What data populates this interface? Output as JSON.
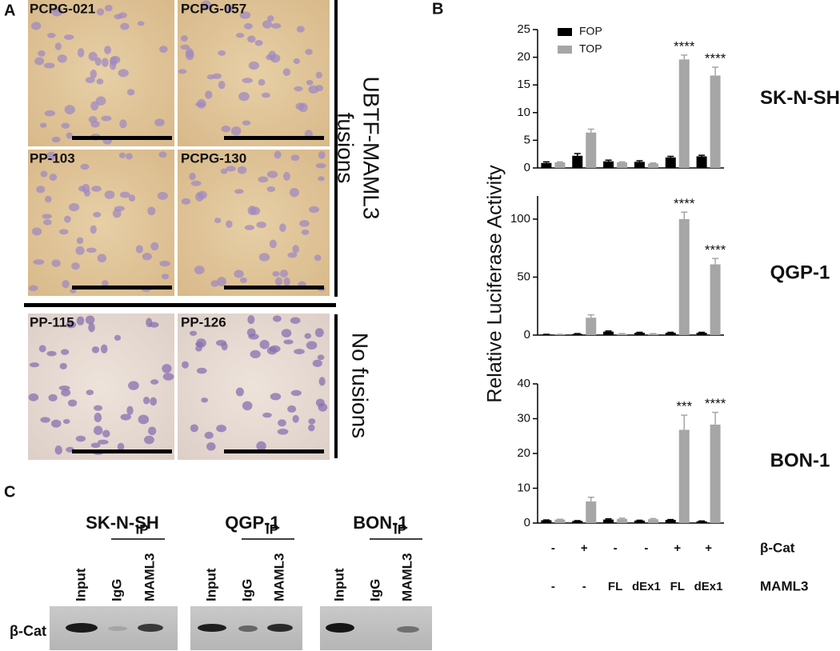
{
  "panel_labels": [
    "A",
    "B",
    "C"
  ],
  "histology": {
    "samples": [
      "PCPG-021",
      "PCPG-057",
      "PP-103",
      "PCPG-130",
      "PP-115",
      "PP-126"
    ],
    "groups": [
      [
        "UBTF-MAML3",
        "fusions"
      ],
      [
        "No fusions"
      ]
    ]
  },
  "y_label": "Relative Luciferase Activity",
  "chart_data": [
    {
      "type": "bar",
      "title": "SK-N-SH",
      "categories": [
        null,
        null,
        null,
        null,
        null,
        null
      ],
      "ylim": [
        0,
        25
      ],
      "yticks": [
        0,
        5,
        10,
        15,
        20,
        25
      ],
      "series": [
        {
          "name": "FOP",
          "color": "#000000",
          "values": [
            0.9,
            2.2,
            1.2,
            1.1,
            1.9,
            2.1
          ],
          "errors": [
            0.2,
            0.4,
            0.2,
            0.2,
            0.2,
            0.2
          ]
        },
        {
          "name": "TOP",
          "color": "#a6a6a6",
          "values": [
            1.0,
            6.4,
            1.0,
            0.8,
            19.6,
            16.7
          ],
          "errors": [
            0.1,
            0.6,
            0.1,
            0.1,
            0.8,
            1.5
          ],
          "significance": [
            null,
            null,
            null,
            null,
            "****",
            "****"
          ]
        }
      ]
    },
    {
      "type": "bar",
      "title": "QGP-1",
      "categories": [
        null,
        null,
        null,
        null,
        null,
        null
      ],
      "ylim": [
        0,
        120
      ],
      "yticks": [
        0,
        50,
        100
      ],
      "series": [
        {
          "color": "#000000",
          "values": [
            0.5,
            1,
            3,
            2,
            2,
            2
          ],
          "errors": [
            0.2,
            0.3,
            0.5,
            0.4,
            0.4,
            0.4
          ]
        },
        {
          "color": "#a6a6a6",
          "values": [
            0.5,
            15,
            1,
            1,
            100,
            61
          ],
          "errors": [
            0.2,
            2.5,
            0.3,
            0.3,
            6,
            5
          ],
          "significance": [
            null,
            null,
            null,
            null,
            "****",
            "****"
          ]
        }
      ]
    },
    {
      "type": "bar",
      "title": "BON-1",
      "categories": [
        null,
        null,
        null,
        null,
        null,
        null
      ],
      "ylim": [
        0,
        40
      ],
      "yticks": [
        0,
        10,
        20,
        30,
        40
      ],
      "series": [
        {
          "color": "#000000",
          "values": [
            0.8,
            0.6,
            1,
            0.7,
            0.9,
            0.5
          ],
          "errors": [
            0.1,
            0.1,
            0.2,
            0.1,
            0.1,
            0.1
          ]
        },
        {
          "color": "#a6a6a6",
          "values": [
            1,
            6.2,
            1.2,
            1.1,
            26.8,
            28.3
          ],
          "errors": [
            0.1,
            1.2,
            0.2,
            0.2,
            4.2,
            3.5
          ],
          "significance": [
            null,
            null,
            null,
            null,
            "***",
            "****"
          ]
        }
      ]
    }
  ],
  "conditions": [
    {
      "label": "β-Cat",
      "values": [
        "-",
        "+",
        "-",
        "-",
        "+",
        "+"
      ]
    },
    {
      "label": "MAML3",
      "values": [
        "-",
        "-",
        "FL",
        "dEx1",
        "FL",
        "dEx1"
      ]
    }
  ],
  "western": {
    "row_label": "β-Cat",
    "blots": [
      {
        "title": "SK-N-SH",
        "ip": "IP",
        "lanes": [
          "Input",
          "IgG",
          "MAML3"
        ]
      },
      {
        "title": "QGP-1",
        "ip": "IP",
        "lanes": [
          "Input",
          "IgG",
          "MAML3"
        ]
      },
      {
        "title": "BON-1",
        "ip": "IP",
        "lanes": [
          "Input",
          "IgG",
          "MAML3"
        ]
      }
    ]
  }
}
